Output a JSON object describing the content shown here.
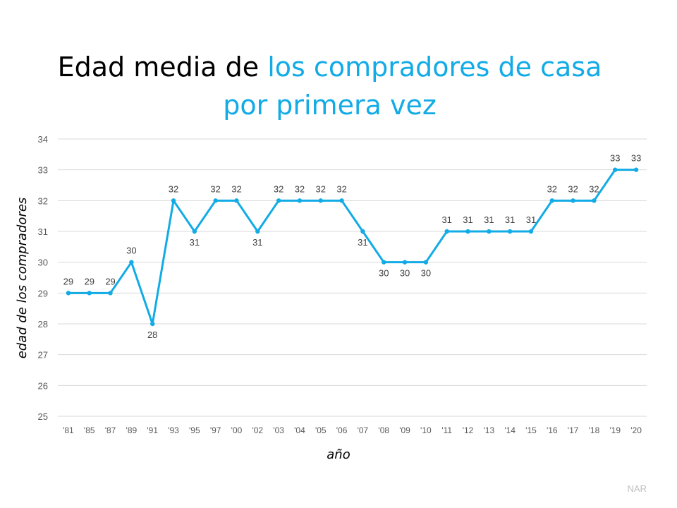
{
  "chart_data": {
    "type": "line",
    "title_part1": "Edad media de ",
    "title_part2": "los compradores de casa",
    "title_part3": "por primera vez",
    "xlabel": "año",
    "ylabel": "edad de los compradores",
    "ylim": [
      25,
      34
    ],
    "yticks": [
      25,
      26,
      27,
      28,
      29,
      30,
      31,
      32,
      33,
      34
    ],
    "grid": true,
    "categories": [
      "'81",
      "'85",
      "'87",
      "'89",
      "'91",
      "'93",
      "'95",
      "'97",
      "'00",
      "'02",
      "'03",
      "'04",
      "'05",
      "'06",
      "'07",
      "'08",
      "'09",
      "'10",
      "'11",
      "'12",
      "'13",
      "'14",
      "'15",
      "'16",
      "'17",
      "'18",
      "'19",
      "'20"
    ],
    "values": [
      29,
      29,
      29,
      30,
      28,
      32,
      31,
      32,
      32,
      31,
      32,
      32,
      32,
      32,
      31,
      30,
      30,
      30,
      31,
      31,
      31,
      31,
      31,
      32,
      32,
      32,
      33,
      33
    ],
    "line_color": "#12ABE5",
    "title_accent_color": "#12ABE5"
  },
  "source": "NAR"
}
